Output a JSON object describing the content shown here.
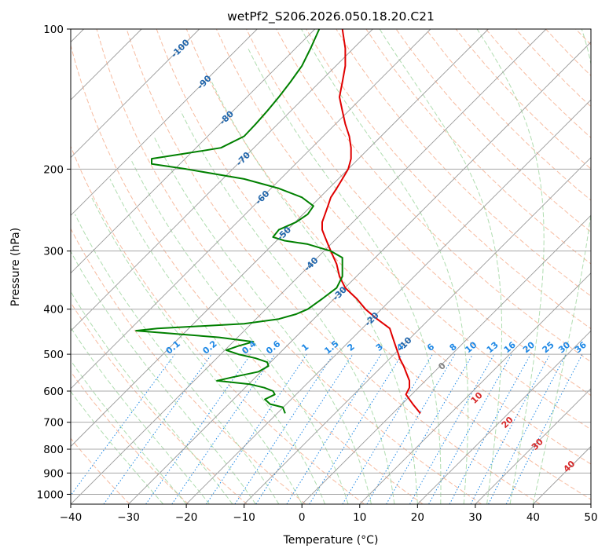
{
  "chart_data": {
    "type": "line",
    "title": "wetPf2_S206.2026.050.18.20.C21",
    "xlabel": "Temperature (°C)",
    "ylabel": "Pressure (hPa)",
    "xlim": [
      -40,
      50
    ],
    "ylim": [
      1050,
      100
    ],
    "y_scale": "log",
    "x_ticks": [
      -40,
      -30,
      -20,
      -10,
      0,
      10,
      20,
      30,
      40,
      50
    ],
    "y_ticks": [
      100,
      200,
      300,
      400,
      500,
      600,
      700,
      800,
      900,
      1000
    ],
    "grid": true,
    "background_lines": {
      "isotherms_skewed": true,
      "dry_adiabats": "dashed light red",
      "moist_adiabats": "dashed light green",
      "mixing_ratio_lines": "dotted blue"
    },
    "colors": {
      "temperature": "#e00000",
      "dewpoint": "#008000",
      "dry_adiabat": "#f4a582",
      "moist_adiabat": "#8fcf8f",
      "mixing_ratio": "#1e88e5",
      "skewed_isotherm_label": "#2166ac",
      "theta_label": "#d62728",
      "zero_label": "#808080"
    },
    "series": [
      {
        "name": "temperature",
        "points": [
          {
            "p": 670,
            "t": 20.5
          },
          {
            "p": 640,
            "t": 19.2
          },
          {
            "p": 610,
            "t": 18.0
          },
          {
            "p": 590,
            "t": 18.6
          },
          {
            "p": 570,
            "t": 18.6
          },
          {
            "p": 550,
            "t": 18.1
          },
          {
            "p": 530,
            "t": 17.6
          },
          {
            "p": 510,
            "t": 16.9
          },
          {
            "p": 500,
            "t": 16.7
          },
          {
            "p": 480,
            "t": 16.2
          },
          {
            "p": 460,
            "t": 15.7
          },
          {
            "p": 440,
            "t": 15.2
          },
          {
            "p": 420,
            "t": 13.0
          },
          {
            "p": 400,
            "t": 11.0
          },
          {
            "p": 380,
            "t": 9.5
          },
          {
            "p": 360,
            "t": 7.5
          },
          {
            "p": 340,
            "t": 6.5
          },
          {
            "p": 320,
            "t": 6.0
          },
          {
            "p": 300,
            "t": 5.0
          },
          {
            "p": 290,
            "t": 4.5
          },
          {
            "p": 280,
            "t": 4.0
          },
          {
            "p": 270,
            "t": 3.5
          },
          {
            "p": 260,
            "t": 3.5
          },
          {
            "p": 250,
            "t": 4.0
          },
          {
            "p": 240,
            "t": 4.5
          },
          {
            "p": 230,
            "t": 5.0
          },
          {
            "p": 220,
            "t": 6.0
          },
          {
            "p": 210,
            "t": 7.0
          },
          {
            "p": 200,
            "t": 8.0
          },
          {
            "p": 190,
            "t": 8.5
          },
          {
            "p": 180,
            "t": 8.5
          },
          {
            "p": 170,
            "t": 8.2
          },
          {
            "p": 160,
            "t": 7.5
          },
          {
            "p": 150,
            "t": 7.0
          },
          {
            "p": 140,
            "t": 6.5
          },
          {
            "p": 130,
            "t": 7.0
          },
          {
            "p": 120,
            "t": 7.5
          },
          {
            "p": 110,
            "t": 7.5
          },
          {
            "p": 100,
            "t": 7.0
          }
        ]
      },
      {
        "name": "dewpoint",
        "points": [
          {
            "p": 670,
            "t": -2.9
          },
          {
            "p": 650,
            "t": -3.3
          },
          {
            "p": 640,
            "t": -5.5
          },
          {
            "p": 625,
            "t": -6.4
          },
          {
            "p": 610,
            "t": -4.7
          },
          {
            "p": 600,
            "t": -5.0
          },
          {
            "p": 590,
            "t": -6.5
          },
          {
            "p": 580,
            "t": -9.0
          },
          {
            "p": 570,
            "t": -14.7
          },
          {
            "p": 560,
            "t": -12.0
          },
          {
            "p": 545,
            "t": -7.5
          },
          {
            "p": 530,
            "t": -5.8
          },
          {
            "p": 520,
            "t": -6.0
          },
          {
            "p": 510,
            "t": -8.0
          },
          {
            "p": 500,
            "t": -11.0
          },
          {
            "p": 490,
            "t": -13.1
          },
          {
            "p": 480,
            "t": -11.0
          },
          {
            "p": 470,
            "t": -8.4
          },
          {
            "p": 460,
            "t": -14.3
          },
          {
            "p": 445,
            "t": -28.7
          },
          {
            "p": 440,
            "t": -25.0
          },
          {
            "p": 430,
            "t": -10.0
          },
          {
            "p": 420,
            "t": -4.0
          },
          {
            "p": 410,
            "t": -1.0
          },
          {
            "p": 400,
            "t": 1.0
          },
          {
            "p": 380,
            "t": 3.5
          },
          {
            "p": 360,
            "t": 6.0
          },
          {
            "p": 340,
            "t": 7.0
          },
          {
            "p": 320,
            "t": 7.0
          },
          {
            "p": 310,
            "t": 7.0
          },
          {
            "p": 300,
            "t": 5.0
          },
          {
            "p": 290,
            "t": 1.0
          },
          {
            "p": 285,
            "t": -3.0
          },
          {
            "p": 280,
            "t": -5.0
          },
          {
            "p": 270,
            "t": -4.0
          },
          {
            "p": 260,
            "t": -1.0
          },
          {
            "p": 250,
            "t": 1.0
          },
          {
            "p": 240,
            "t": 2.0
          },
          {
            "p": 230,
            "t": 0.0
          },
          {
            "p": 220,
            "t": -4.0
          },
          {
            "p": 210,
            "t": -10.0
          },
          {
            "p": 200,
            "t": -20.0
          },
          {
            "p": 195,
            "t": -26.0
          },
          {
            "p": 190,
            "t": -26.0
          },
          {
            "p": 185,
            "t": -20.0
          },
          {
            "p": 180,
            "t": -14.0
          },
          {
            "p": 170,
            "t": -10.0
          },
          {
            "p": 160,
            "t": -8.0
          },
          {
            "p": 150,
            "t": -6.0
          },
          {
            "p": 140,
            "t": -4.0
          },
          {
            "p": 130,
            "t": -2.0
          },
          {
            "p": 120,
            "t": 0.0
          },
          {
            "p": 110,
            "t": 1.5
          },
          {
            "p": 100,
            "t": 3.0
          }
        ]
      }
    ],
    "isotherm_labels": [
      "-100",
      "-90",
      "-80",
      "-70",
      "-60",
      "-50",
      "-40",
      "-30",
      "-20",
      "-10"
    ],
    "mixing_ratio_labels": [
      "0.1",
      "0.2",
      "0.4",
      "0.6",
      "1",
      "1.5",
      "2",
      "3",
      "4",
      "6",
      "8",
      "10",
      "13",
      "16",
      "20",
      "25",
      "30",
      "36"
    ],
    "dry_adiabat_labels": [
      "0",
      "10",
      "20",
      "30",
      "40"
    ]
  }
}
